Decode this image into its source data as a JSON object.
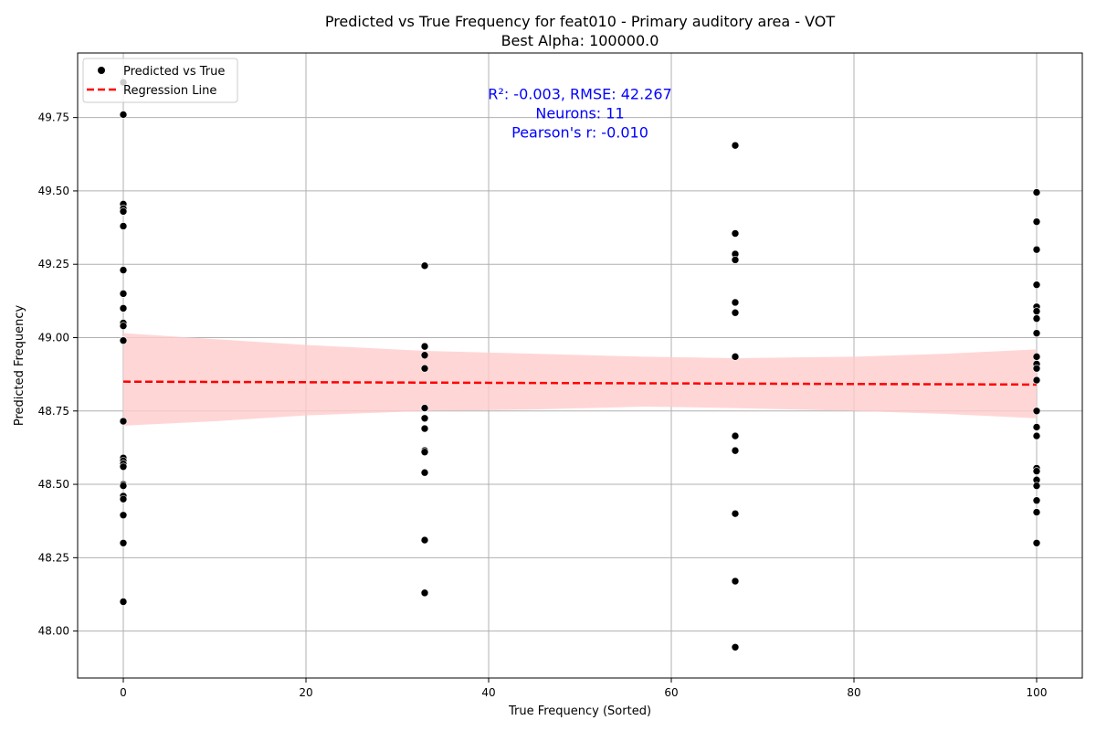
{
  "chart_data": {
    "type": "scatter",
    "title_line1": "Predicted vs True Frequency for feat010 - Primary auditory area - VOT",
    "title_line2": "Best Alpha: 100000.0",
    "xlabel": "True Frequency (Sorted)",
    "ylabel": "Predicted Frequency",
    "xlim": [
      -5,
      105
    ],
    "ylim": [
      47.84,
      49.97
    ],
    "x_ticks": [
      0,
      20,
      40,
      60,
      80,
      100
    ],
    "y_ticks": [
      48.0,
      48.25,
      48.5,
      48.75,
      49.0,
      49.25,
      49.5,
      49.75
    ],
    "grid": true,
    "legend": {
      "placement": "top-left",
      "entries": [
        {
          "label": "Predicted vs True",
          "marker": "dot",
          "color": "#000000"
        },
        {
          "label": "Regression Line",
          "marker": "dashed-line",
          "color": "#ff0000"
        }
      ]
    },
    "annotation": {
      "lines": [
        "R²: -0.003, RMSE: 42.267",
        "Neurons: 11",
        "Pearson's r: -0.010"
      ],
      "color": "#0000ff",
      "x": 50,
      "y": 49.75
    },
    "series": [
      {
        "name": "Predicted vs True",
        "color": "#000000",
        "points": [
          [
            0,
            49.87
          ],
          [
            0,
            49.76
          ],
          [
            0,
            49.455
          ],
          [
            0,
            49.44
          ],
          [
            0,
            49.43
          ],
          [
            0,
            49.38
          ],
          [
            0,
            49.23
          ],
          [
            0,
            49.15
          ],
          [
            0,
            49.1
          ],
          [
            0,
            49.05
          ],
          [
            0,
            49.04
          ],
          [
            0,
            48.99
          ],
          [
            0,
            48.715
          ],
          [
            0,
            48.59
          ],
          [
            0,
            48.58
          ],
          [
            0,
            48.57
          ],
          [
            0,
            48.56
          ],
          [
            0,
            48.5
          ],
          [
            0,
            48.495
          ],
          [
            0,
            48.46
          ],
          [
            0,
            48.45
          ],
          [
            0,
            48.395
          ],
          [
            0,
            48.3
          ],
          [
            0,
            48.1
          ],
          [
            33,
            49.245
          ],
          [
            33,
            48.97
          ],
          [
            33,
            48.94
          ],
          [
            33,
            48.895
          ],
          [
            33,
            48.76
          ],
          [
            33,
            48.725
          ],
          [
            33,
            48.69
          ],
          [
            33,
            48.615
          ],
          [
            33,
            48.61
          ],
          [
            33,
            48.54
          ],
          [
            33,
            48.31
          ],
          [
            33,
            48.13
          ],
          [
            67,
            49.655
          ],
          [
            67,
            49.355
          ],
          [
            67,
            49.285
          ],
          [
            67,
            49.265
          ],
          [
            67,
            49.12
          ],
          [
            67,
            49.085
          ],
          [
            67,
            48.935
          ],
          [
            67,
            48.665
          ],
          [
            67,
            48.615
          ],
          [
            67,
            48.4
          ],
          [
            67,
            48.17
          ],
          [
            67,
            47.945
          ],
          [
            100,
            49.495
          ],
          [
            100,
            49.395
          ],
          [
            100,
            49.3
          ],
          [
            100,
            49.18
          ],
          [
            100,
            49.105
          ],
          [
            100,
            49.09
          ],
          [
            100,
            49.065
          ],
          [
            100,
            49.015
          ],
          [
            100,
            48.935
          ],
          [
            100,
            48.91
          ],
          [
            100,
            48.895
          ],
          [
            100,
            48.855
          ],
          [
            100,
            48.75
          ],
          [
            100,
            48.695
          ],
          [
            100,
            48.665
          ],
          [
            100,
            48.555
          ],
          [
            100,
            48.545
          ],
          [
            100,
            48.515
          ],
          [
            100,
            48.495
          ],
          [
            100,
            48.445
          ],
          [
            100,
            48.405
          ],
          [
            100,
            48.3
          ]
        ]
      },
      {
        "name": "Regression Line",
        "color": "#ff0000",
        "line": [
          [
            0,
            48.85
          ],
          [
            100,
            48.84
          ]
        ]
      }
    ],
    "confidence_band": {
      "color": "#ffcccc",
      "upper": [
        [
          0,
          49.015
        ],
        [
          10,
          48.995
        ],
        [
          20,
          48.975
        ],
        [
          33,
          48.955
        ],
        [
          45,
          48.945
        ],
        [
          57,
          48.935
        ],
        [
          67,
          48.93
        ],
        [
          80,
          48.935
        ],
        [
          90,
          48.945
        ],
        [
          100,
          48.96
        ]
      ],
      "lower": [
        [
          0,
          48.7
        ],
        [
          10,
          48.715
        ],
        [
          20,
          48.735
        ],
        [
          33,
          48.75
        ],
        [
          45,
          48.755
        ],
        [
          57,
          48.765
        ],
        [
          67,
          48.76
        ],
        [
          80,
          48.75
        ],
        [
          90,
          48.74
        ],
        [
          100,
          48.725
        ]
      ]
    }
  }
}
